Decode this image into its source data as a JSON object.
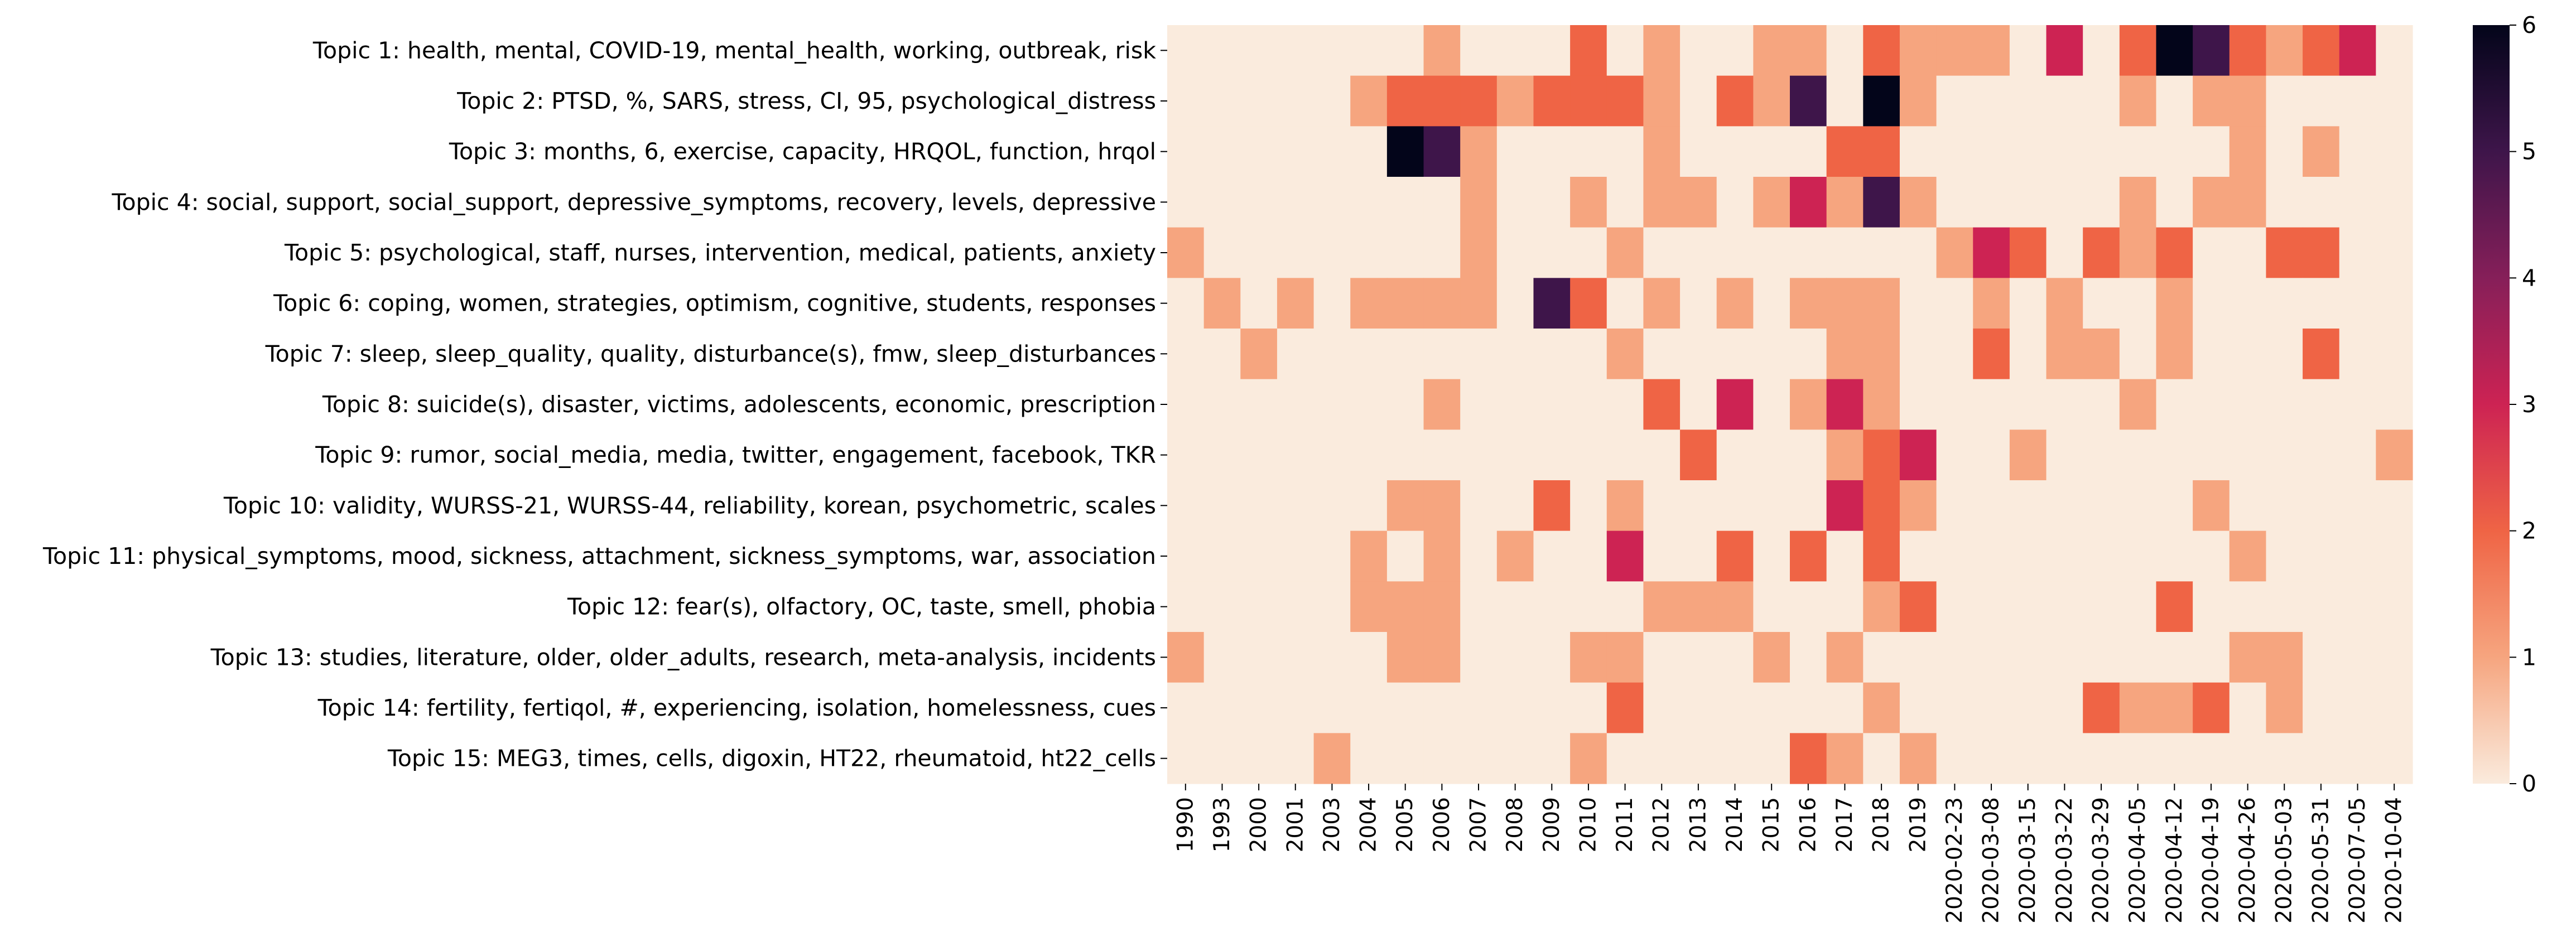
{
  "chart_data": {
    "type": "heatmap",
    "title": "",
    "xlabel": "",
    "ylabel": "",
    "x_categories": [
      "1990",
      "1993",
      "2000",
      "2001",
      "2003",
      "2004",
      "2005",
      "2006",
      "2007",
      "2008",
      "2009",
      "2010",
      "2011",
      "2012",
      "2013",
      "2014",
      "2015",
      "2016",
      "2017",
      "2018",
      "2019",
      "2020-02-23",
      "2020-03-08",
      "2020-03-15",
      "2020-03-22",
      "2020-03-29",
      "2020-04-05",
      "2020-04-12",
      "2020-04-19",
      "2020-04-26",
      "2020-05-03",
      "2020-05-31",
      "2020-07-05",
      "2020-10-04"
    ],
    "y_categories": [
      "Topic 1: health, mental, COVID-19, mental_health, working, outbreak, risk",
      "Topic 2: PTSD, %, SARS, stress, CI, 95, psychological_distress",
      "Topic 3: months, 6, exercise, capacity, HRQOL, function, hrqol",
      "Topic 4: social, support, social_support, depressive_symptoms, recovery, levels, depressive",
      "Topic 5: psychological, staff, nurses, intervention, medical, patients, anxiety",
      "Topic 6: coping, women, strategies, optimism, cognitive, students, responses",
      "Topic 7: sleep, sleep_quality, quality, disturbance(s), fmw, sleep_disturbances",
      "Topic 8: suicide(s), disaster, victims, adolescents, economic, prescription",
      "Topic 9: rumor, social_media, media, twitter, engagement, facebook, TKR",
      "Topic 10: validity, WURSS-21, WURSS-44, reliability, korean, psychometric, scales",
      "Topic 11: physical_symptoms, mood, sickness, attachment, sickness_symptoms, war, association",
      "Topic 12: fear(s), olfactory, OC, taste, smell, phobia",
      "Topic 13: studies, literature, older, older_adults, research, meta-analysis, incidents",
      "Topic 14: fertility, fertiqol, #, experiencing, isolation, homelessness, cues",
      "Topic 15: MEG3, times, cells, digoxin, HT22, rheumatoid, ht22_cells"
    ],
    "values": [
      [
        0,
        0,
        0,
        0,
        0,
        0,
        0,
        1,
        0,
        0,
        0,
        2,
        0,
        1,
        0,
        0,
        1,
        1,
        0,
        2,
        1,
        1,
        1,
        0,
        3,
        0,
        2,
        6,
        5,
        2,
        1,
        2,
        3,
        0
      ],
      [
        0,
        0,
        0,
        0,
        0,
        1,
        2,
        2,
        2,
        1,
        2,
        2,
        2,
        1,
        0,
        2,
        1,
        5,
        0,
        6,
        1,
        0,
        0,
        0,
        0,
        0,
        1,
        0,
        1,
        1,
        0,
        0,
        0,
        0
      ],
      [
        0,
        0,
        0,
        0,
        0,
        0,
        6,
        5,
        1,
        0,
        0,
        0,
        0,
        1,
        0,
        0,
        0,
        0,
        2,
        2,
        0,
        0,
        0,
        0,
        0,
        0,
        0,
        0,
        0,
        1,
        0,
        1,
        0,
        0
      ],
      [
        0,
        0,
        0,
        0,
        0,
        0,
        0,
        0,
        1,
        0,
        0,
        1,
        0,
        1,
        1,
        0,
        1,
        3,
        1,
        5,
        1,
        0,
        0,
        0,
        0,
        0,
        1,
        0,
        1,
        1,
        0,
        0,
        0,
        0
      ],
      [
        1,
        0,
        0,
        0,
        0,
        0,
        0,
        0,
        1,
        0,
        0,
        0,
        1,
        0,
        0,
        0,
        0,
        0,
        0,
        0,
        0,
        1,
        3,
        2,
        0,
        2,
        1,
        2,
        0,
        0,
        2,
        2,
        0,
        0
      ],
      [
        0,
        1,
        0,
        1,
        0,
        1,
        1,
        1,
        1,
        0,
        5,
        2,
        0,
        1,
        0,
        1,
        0,
        1,
        1,
        1,
        0,
        0,
        1,
        0,
        1,
        0,
        0,
        1,
        0,
        0,
        0,
        0,
        0,
        0
      ],
      [
        0,
        0,
        1,
        0,
        0,
        0,
        0,
        0,
        0,
        0,
        0,
        0,
        1,
        0,
        0,
        0,
        0,
        0,
        1,
        1,
        0,
        0,
        2,
        0,
        1,
        1,
        0,
        1,
        0,
        0,
        0,
        2,
        0,
        0
      ],
      [
        0,
        0,
        0,
        0,
        0,
        0,
        0,
        1,
        0,
        0,
        0,
        0,
        0,
        2,
        0,
        3,
        0,
        1,
        3,
        1,
        0,
        0,
        0,
        0,
        0,
        0,
        1,
        0,
        0,
        0,
        0,
        0,
        0,
        0
      ],
      [
        0,
        0,
        0,
        0,
        0,
        0,
        0,
        0,
        0,
        0,
        0,
        0,
        0,
        0,
        2,
        0,
        0,
        0,
        1,
        2,
        3,
        0,
        0,
        1,
        0,
        0,
        0,
        0,
        0,
        0,
        0,
        0,
        0,
        1
      ],
      [
        0,
        0,
        0,
        0,
        0,
        0,
        1,
        1,
        0,
        0,
        2,
        0,
        1,
        0,
        0,
        0,
        0,
        0,
        3,
        2,
        1,
        0,
        0,
        0,
        0,
        0,
        0,
        0,
        1,
        0,
        0,
        0,
        0,
        0
      ],
      [
        0,
        0,
        0,
        0,
        0,
        1,
        0,
        1,
        0,
        1,
        0,
        0,
        3,
        0,
        0,
        2,
        0,
        2,
        0,
        2,
        0,
        0,
        0,
        0,
        0,
        0,
        0,
        0,
        0,
        1,
        0,
        0,
        0,
        0
      ],
      [
        0,
        0,
        0,
        0,
        0,
        1,
        1,
        1,
        0,
        0,
        0,
        0,
        0,
        1,
        1,
        1,
        0,
        0,
        0,
        1,
        2,
        0,
        0,
        0,
        0,
        0,
        0,
        2,
        0,
        0,
        0,
        0,
        0,
        0
      ],
      [
        1,
        0,
        0,
        0,
        0,
        0,
        1,
        1,
        0,
        0,
        0,
        1,
        1,
        0,
        0,
        0,
        1,
        0,
        1,
        0,
        0,
        0,
        0,
        0,
        0,
        0,
        0,
        0,
        0,
        1,
        1,
        0,
        0,
        0
      ],
      [
        0,
        0,
        0,
        0,
        0,
        0,
        0,
        0,
        0,
        0,
        0,
        0,
        2,
        0,
        0,
        0,
        0,
        0,
        0,
        1,
        0,
        0,
        0,
        0,
        0,
        2,
        1,
        1,
        2,
        0,
        1,
        0,
        0,
        0
      ],
      [
        0,
        0,
        0,
        0,
        1,
        0,
        0,
        0,
        0,
        0,
        0,
        1,
        0,
        0,
        0,
        0,
        0,
        2,
        1,
        0,
        1,
        0,
        0,
        0,
        0,
        0,
        0,
        0,
        0,
        0,
        0,
        0,
        0,
        0
      ]
    ],
    "colorbar": {
      "min": 0,
      "max": 6,
      "ticks": [
        "0",
        "1",
        "2",
        "3",
        "4",
        "5",
        "6"
      ]
    },
    "colormap": [
      "#faebdd",
      "#f6a57f",
      "#ef6445",
      "#cd2353",
      "#861f59",
      "#3e154a",
      "#03051a"
    ],
    "grid": false,
    "legend": "colorbar at right"
  }
}
